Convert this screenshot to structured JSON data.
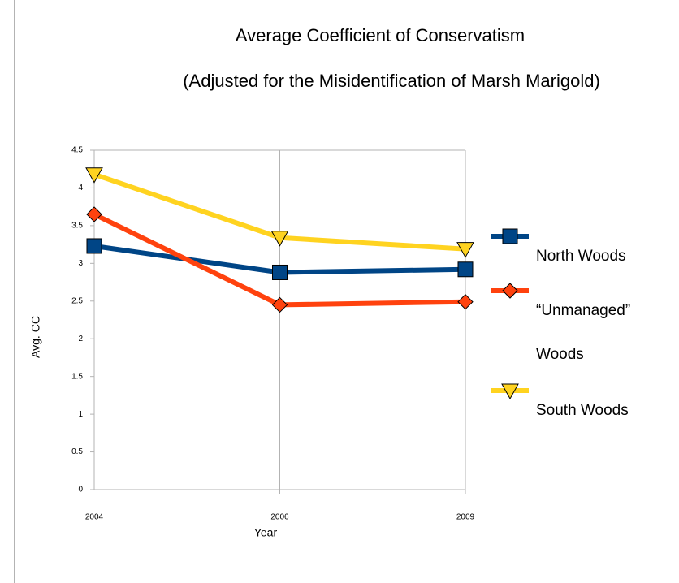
{
  "chart_data": {
    "type": "line",
    "title": "Average Coefficient of Conservatism",
    "subtitle": "(Adjusted for the Misidentification of Marsh Marigold)",
    "x_label": "Year",
    "y_label": "Avg. CC",
    "categories": [
      "2004",
      "2006",
      "2009"
    ],
    "series": [
      {
        "name": "North Woods",
        "color": "#004586",
        "marker": "square",
        "values": [
          3.23,
          2.88,
          2.92
        ]
      },
      {
        "name": "“Unmanaged” Woods",
        "color": "#ff420e",
        "marker": "diamond",
        "values": [
          3.65,
          2.45,
          2.49
        ]
      },
      {
        "name": "South Woods",
        "color": "#ffd320",
        "marker": "triangle-down",
        "values": [
          4.18,
          3.34,
          3.19
        ]
      }
    ],
    "ylim": [
      0,
      4.5
    ],
    "yticks": [
      0,
      0.5,
      1,
      1.5,
      2,
      2.5,
      3,
      3.5,
      4,
      4.5
    ],
    "grid": "x",
    "legend": "right"
  }
}
